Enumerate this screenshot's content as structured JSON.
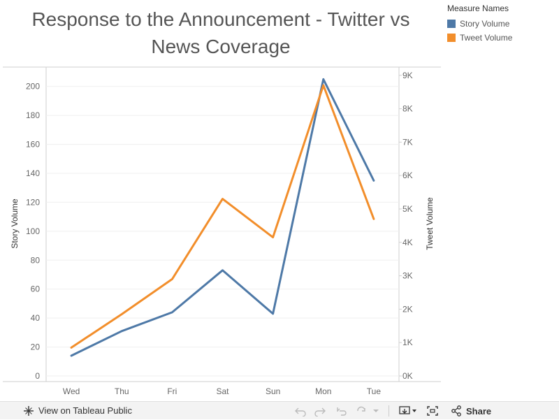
{
  "chart_data": {
    "type": "line",
    "title": "Response to the Announcement - Twitter vs News Coverage",
    "title_lines": [
      "Response to the Announcement - Twitter vs",
      "News Coverage"
    ],
    "categories": [
      "Wed",
      "Thu",
      "Fri",
      "Sat",
      "Sun",
      "Mon",
      "Tue"
    ],
    "series": [
      {
        "name": "Story Volume",
        "axis": "left",
        "color": "#4e79a7",
        "values": [
          14,
          31,
          44,
          73,
          43,
          205,
          135
        ]
      },
      {
        "name": "Tweet Volume",
        "axis": "right",
        "color": "#f28e2b",
        "values": [
          850,
          1850,
          2900,
          5300,
          4150,
          8700,
          4700
        ]
      }
    ],
    "ylabel": "Story Volume",
    "ylabel_right": "Tweet Volume",
    "ylim": [
      0,
      210
    ],
    "ylim_right": [
      0,
      9100
    ],
    "yticks": [
      "0",
      "20",
      "40",
      "60",
      "80",
      "100",
      "120",
      "140",
      "160",
      "180",
      "200"
    ],
    "yticks_right": [
      "0K",
      "1K",
      "2K",
      "3K",
      "4K",
      "5K",
      "6K",
      "7K",
      "8K",
      "9K"
    ],
    "grid": true,
    "legend": {
      "title": "Measure Names",
      "position": "top-right"
    }
  },
  "toolbar": {
    "view_label": "View on Tableau Public",
    "share_label": "Share",
    "icons": [
      "tableau-logo-icon",
      "undo-icon",
      "redo-icon",
      "revert-icon",
      "refresh-icon",
      "pause-icon",
      "download-icon",
      "fullscreen-icon",
      "share-icon"
    ]
  }
}
